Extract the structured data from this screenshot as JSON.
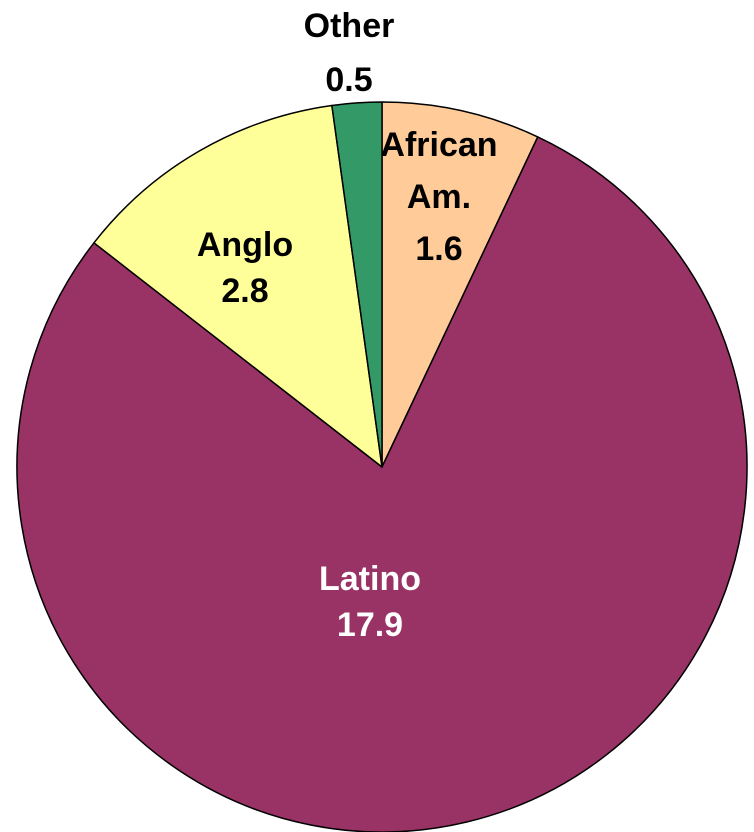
{
  "chart_data": {
    "type": "pie",
    "title": "",
    "slices": [
      {
        "label": [
          "African",
          "Am."
        ],
        "value": 1.6,
        "value_text": "1.6",
        "color": "#FFCC99",
        "text_color": "#000000"
      },
      {
        "label": [
          "Latino"
        ],
        "value": 17.9,
        "value_text": "17.9",
        "color": "#993366",
        "text_color": "#FFFFFF"
      },
      {
        "label": [
          "Anglo"
        ],
        "value": 2.8,
        "value_text": "2.8",
        "color": "#FFFF99",
        "text_color": "#000000"
      },
      {
        "label": [
          "Other"
        ],
        "value": 0.5,
        "value_text": "0.5",
        "color": "#339966",
        "text_color": "#000000"
      }
    ],
    "start_angle": "12 o'clock",
    "direction": "clockwise",
    "legend": "none"
  }
}
